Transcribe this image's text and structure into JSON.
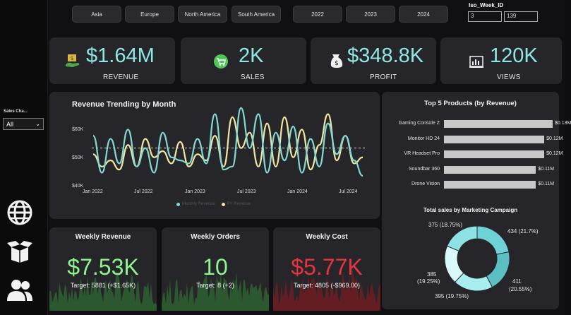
{
  "filters": {
    "regions": [
      "Asia",
      "Europe",
      "North America",
      "South America"
    ],
    "years": [
      "2022",
      "2023",
      "2024"
    ],
    "week_label": "Iso_Week_ID",
    "week_from": "3",
    "week_to": "139"
  },
  "sidebar": {
    "slicer_label": "Sales Cha...",
    "slicer_value": "All",
    "nav_icons": [
      "globe-icon",
      "box-icon",
      "users-icon"
    ]
  },
  "kpis": [
    {
      "value": "$1.64M",
      "label": "REVENUE",
      "icon": "money-hand-icon"
    },
    {
      "value": "2K",
      "label": "SALES",
      "icon": "cart-icon"
    },
    {
      "value": "$348.8K",
      "label": "PROFIT",
      "icon": "money-bag-icon"
    },
    {
      "value": "120K",
      "label": "VIEWS",
      "icon": "dashboard-icon"
    }
  ],
  "revenue_trend": {
    "title": "Revenue Trending by Month",
    "y_ticks": [
      "$60K",
      "$50K",
      "$40K"
    ],
    "x_ticks": [
      "Jan 2022",
      "Jul 2022",
      "Jan 2023",
      "Jul 2023",
      "Jan 2024",
      "Jul 2024"
    ],
    "legend": [
      "Monthly Revenue",
      "PY Revenue"
    ]
  },
  "top_products": {
    "title": "Top 5 Products (by Revenue)"
  },
  "campaign": {
    "title": "Total sales by Marketing Campaign",
    "labels": [
      "375 (18.75%)",
      "434 (21.7%)",
      "385",
      "(19.25%)",
      "411",
      "(20.55%)",
      "395 (19.75%)"
    ]
  },
  "weekly": [
    {
      "title": "Weekly Revenue",
      "value": "$7.53K",
      "target": "Target: 5881 (+$1.65K)",
      "color": "#8ef58e"
    },
    {
      "title": "Weekly Orders",
      "value": "10",
      "target": "Target: 8 (+2)",
      "color": "#8ef58e"
    },
    {
      "title": "Weekly Cost",
      "value": "$5.77K",
      "target": "Target: 4805 (-$969.00)",
      "color": "#e8333d"
    }
  ],
  "chart_data": [
    {
      "type": "line",
      "title": "Revenue Trending by Month",
      "x": [
        "Jan 2022",
        "Feb 2022",
        "Mar 2022",
        "Apr 2022",
        "May 2022",
        "Jun 2022",
        "Jul 2022",
        "Aug 2022",
        "Sep 2022",
        "Oct 2022",
        "Nov 2022",
        "Dec 2022",
        "Jan 2023",
        "Feb 2023",
        "Mar 2023",
        "Apr 2023",
        "May 2023",
        "Jun 2023",
        "Jul 2023",
        "Aug 2023",
        "Sep 2023",
        "Oct 2023",
        "Nov 2023",
        "Dec 2023",
        "Jan 2024",
        "Feb 2024",
        "Mar 2024",
        "Apr 2024",
        "May 2024",
        "Jun 2024",
        "Jul 2024",
        "Aug 2024"
      ],
      "series": [
        {
          "name": "Monthly Revenue",
          "color": "#7fd9d4",
          "values": [
            56,
            44,
            55,
            47,
            58,
            46,
            52,
            44,
            57,
            49,
            48,
            47,
            55,
            47,
            63,
            45,
            46,
            65,
            52,
            63,
            44,
            57,
            48,
            59,
            44,
            55,
            46,
            60,
            50,
            56,
            48,
            43
          ]
        },
        {
          "name": "PY Revenue",
          "color": "#f0e6a0",
          "values": [
            50,
            46,
            48,
            45,
            53,
            46,
            55,
            49,
            51,
            47,
            54,
            46,
            50,
            48,
            56,
            46,
            62,
            52,
            57,
            46,
            60,
            46,
            62,
            49,
            58,
            45,
            53,
            63,
            48,
            56,
            47,
            49
          ]
        }
      ],
      "ylim": [
        40,
        62
      ],
      "y_ticks": [
        "$60K",
        "$50K",
        "$40K"
      ],
      "avg_line": 52,
      "legend_position": "bottom"
    },
    {
      "type": "bar",
      "title": "Top 5 Products (by Revenue)",
      "categories": [
        "Gaming Console Z",
        "Monitor HD 24",
        "VR Headset Pro",
        "Soundbar 360",
        "Drone Vision"
      ],
      "values": [
        0.13,
        0.12,
        0.12,
        0.11,
        0.11
      ],
      "labels": [
        "$0.13M",
        "$0.12M",
        "$0.12M",
        "$0.11M",
        "$0.11M"
      ],
      "orientation": "horizontal"
    },
    {
      "type": "pie",
      "title": "Total sales by Marketing Campaign",
      "values": [
        434,
        411,
        395,
        385,
        375
      ],
      "colors": [
        "#6ed3d6",
        "#5bbfc4",
        "#a8eeee",
        "#d8fafa",
        "#8ee2e4"
      ],
      "donut": true
    }
  ]
}
